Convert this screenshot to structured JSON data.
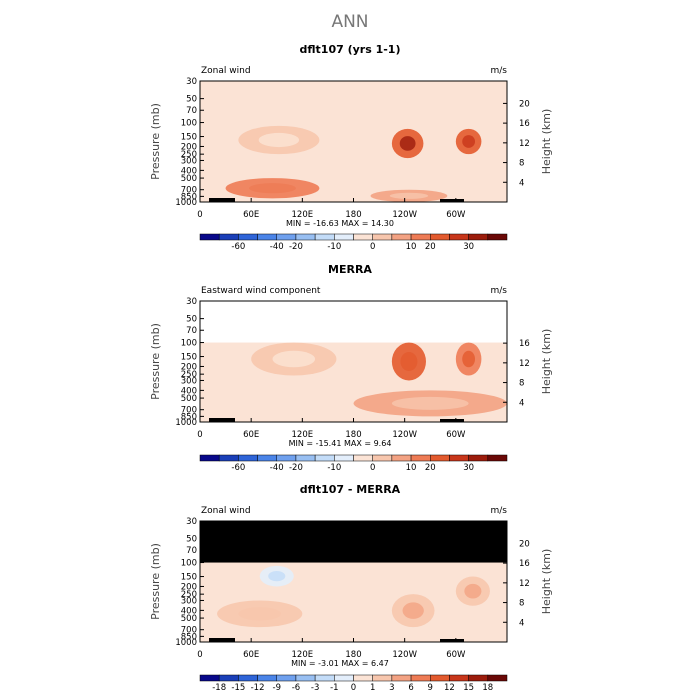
{
  "main_title": "ANN",
  "chart_data": [
    {
      "type": "heatmap",
      "title": "dflt107 (yrs 1-1)",
      "field_label": "Zonal wind",
      "units": "m/s",
      "ylabel_left": "Pressure (mb)",
      "ylabel_right": "Height (km)",
      "yticks_left": [
        "30",
        "50",
        "70",
        "100",
        "150",
        "200",
        "250",
        "300",
        "400",
        "500",
        "700",
        "850",
        "1000"
      ],
      "yticks_right": [
        "20",
        "16",
        "12",
        "8",
        "4"
      ],
      "xticks": [
        "0",
        "60E",
        "120E",
        "180",
        "120W",
        "60W"
      ],
      "stats": "MIN = -16.63  MAX =  14.30",
      "masked_above_mb": null,
      "colorbar": {
        "edges": [
          "-60",
          "-40",
          "-20",
          "-10",
          "0",
          "10",
          "20",
          "30"
        ],
        "colors": [
          "#08088a",
          "#1a3fb8",
          "#2e64d8",
          "#4a84e8",
          "#6fa0ee",
          "#98bff2",
          "#c3dcf8",
          "#e3eefb",
          "#fbe3d5",
          "#f7c6ad",
          "#f3a283",
          "#ee7b55",
          "#e35a2e",
          "#c8361a",
          "#9c1c0c",
          "#6a0806"
        ]
      },
      "features": [
        {
          "name": "jet-core-150-east",
          "lon": [
            45,
            140
          ],
          "p": [
            110,
            250
          ],
          "value": -8
        },
        {
          "name": "jet-core-200-w1",
          "lon": [
            225,
            262
          ],
          "p": [
            120,
            280
          ],
          "value": 12
        },
        {
          "name": "jet-core-200-w2",
          "lon": [
            300,
            330
          ],
          "p": [
            120,
            250
          ],
          "value": 10
        },
        {
          "name": "lower-westerly",
          "lon": [
            30,
            140
          ],
          "p": [
            500,
            900
          ],
          "value": 4
        },
        {
          "name": "tropical-easterly",
          "lon": [
            200,
            290
          ],
          "p": [
            700,
            1000
          ],
          "value": -3
        }
      ]
    },
    {
      "type": "heatmap",
      "title": "MERRA",
      "field_label": "Eastward wind component",
      "units": "m/s",
      "ylabel_left": "Pressure (mb)",
      "ylabel_right": "Height (km)",
      "yticks_left": [
        "30",
        "50",
        "70",
        "100",
        "150",
        "200",
        "250",
        "300",
        "400",
        "500",
        "700",
        "850",
        "1000"
      ],
      "yticks_right": [
        "16",
        "12",
        "8",
        "4"
      ],
      "xticks": [
        "0",
        "60E",
        "120E",
        "180",
        "120W",
        "60W"
      ],
      "stats": "MIN = -15.41  MAX =   9.64",
      "masked_above_mb": 100,
      "colorbar": {
        "edges": [
          "-60",
          "-40",
          "-20",
          "-10",
          "0",
          "10",
          "20",
          "30"
        ],
        "colors": [
          "#08088a",
          "#1a3fb8",
          "#2e64d8",
          "#4a84e8",
          "#6fa0ee",
          "#98bff2",
          "#c3dcf8",
          "#e3eefb",
          "#fbe3d5",
          "#f7c6ad",
          "#f3a283",
          "#ee7b55",
          "#e35a2e",
          "#c8361a",
          "#9c1c0c",
          "#6a0806"
        ]
      },
      "features": [
        {
          "name": "easterly-150-east",
          "lon": [
            60,
            160
          ],
          "p": [
            100,
            260
          ],
          "value": -9
        },
        {
          "name": "jet-core-200-w1",
          "lon": [
            225,
            265
          ],
          "p": [
            100,
            300
          ],
          "value": 8
        },
        {
          "name": "jet-core-200-w2",
          "lon": [
            300,
            330
          ],
          "p": [
            100,
            260
          ],
          "value": 6
        },
        {
          "name": "lower-easterly",
          "lon": [
            180,
            360
          ],
          "p": [
            400,
            850
          ],
          "value": -3
        }
      ]
    },
    {
      "type": "heatmap",
      "title": "dflt107 - MERRA",
      "field_label": "Zonal wind",
      "units": "m/s",
      "ylabel_left": "Pressure (mb)",
      "ylabel_right": "Height (km)",
      "yticks_left": [
        "30",
        "50",
        "70",
        "100",
        "150",
        "200",
        "250",
        "300",
        "400",
        "500",
        "700",
        "850",
        "1000"
      ],
      "yticks_right": [
        "20",
        "16",
        "12",
        "8",
        "4"
      ],
      "xticks": [
        "0",
        "60E",
        "120E",
        "180",
        "120W",
        "60W"
      ],
      "stats": "MIN =  -3.01  MAX =   6.47",
      "masked_above_mb": 100,
      "colorbar": {
        "edges": [
          "-18",
          "-15",
          "-12",
          "-9",
          "-6",
          "-3",
          "-1",
          "0",
          "1",
          "3",
          "6",
          "9",
          "12",
          "15",
          "18"
        ],
        "colors": [
          "#08088a",
          "#1a3fb8",
          "#2e64d8",
          "#4a84e8",
          "#6fa0ee",
          "#98bff2",
          "#c3dcf8",
          "#e3eefb",
          "#fbe3d5",
          "#f7c6ad",
          "#f3a283",
          "#ee7b55",
          "#e35a2e",
          "#c8361a",
          "#9c1c0c",
          "#6a0806"
        ]
      },
      "features": [
        {
          "name": "diff-150-east",
          "lon": [
            70,
            110
          ],
          "p": [
            110,
            200
          ],
          "value": -1.5
        },
        {
          "name": "diff-200-w1",
          "lon": [
            225,
            275
          ],
          "p": [
            250,
            650
          ],
          "value": 3
        },
        {
          "name": "diff-200-w2",
          "lon": [
            300,
            340
          ],
          "p": [
            150,
            350
          ],
          "value": 3.5
        },
        {
          "name": "diff-lower-east",
          "lon": [
            20,
            120
          ],
          "p": [
            300,
            650
          ],
          "value": 2.5
        }
      ]
    }
  ]
}
